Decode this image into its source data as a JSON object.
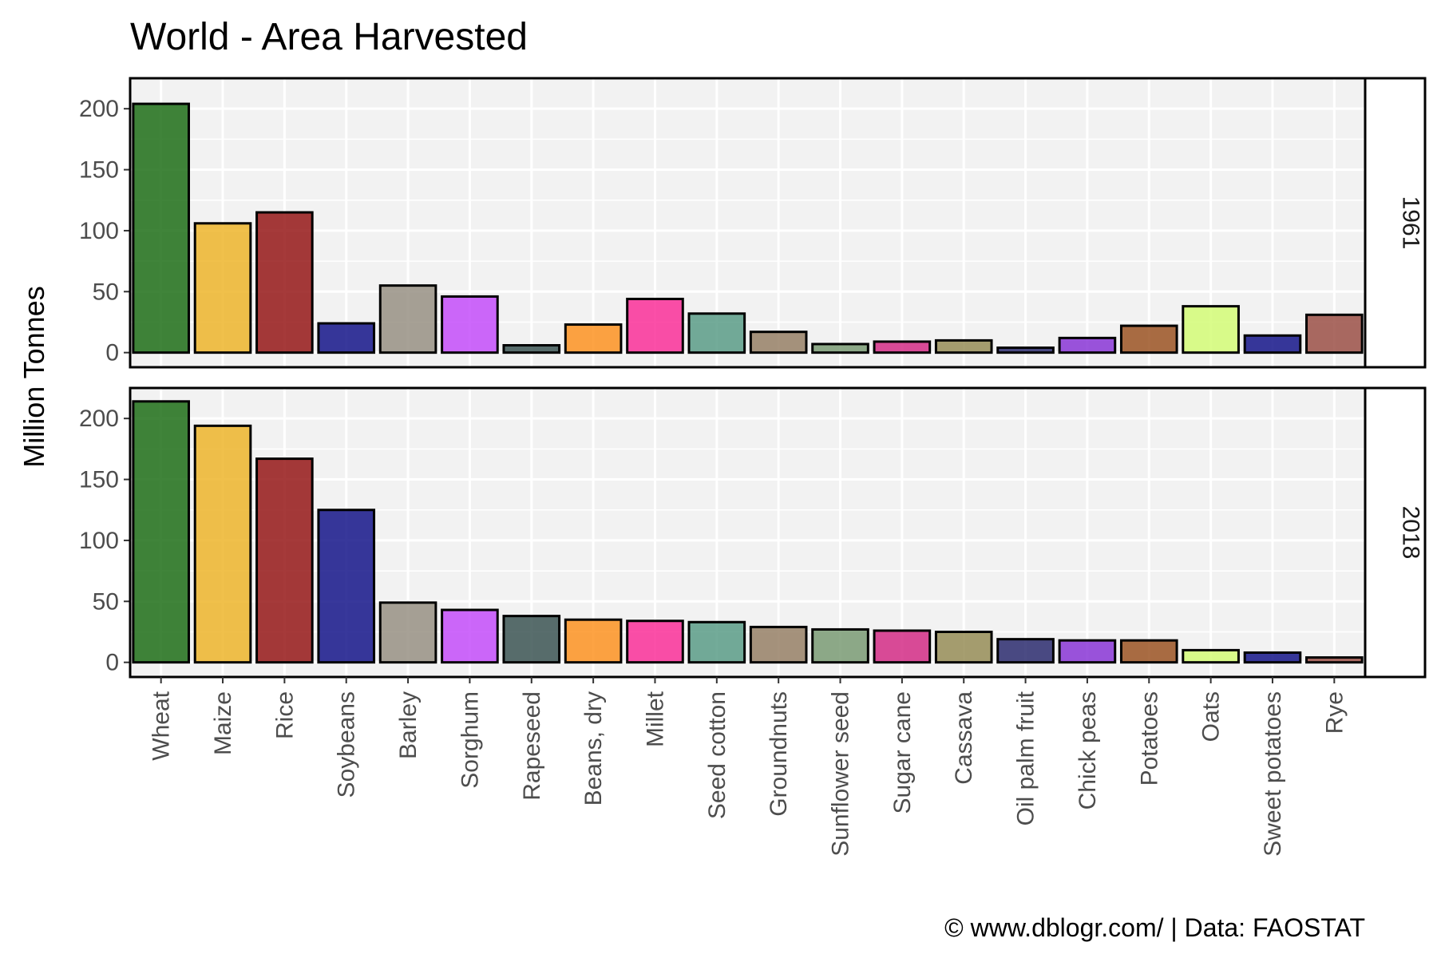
{
  "chart_data": {
    "type": "bar",
    "title": "World - Area Harvested",
    "ylabel": "Million Tonnes",
    "xlabel": "",
    "caption": "© www.dblogr.com/  |  Data: FAOSTAT",
    "ylim": [
      -12,
      225
    ],
    "yticks": [
      0,
      50,
      100,
      150,
      200
    ],
    "grid": true,
    "legend": "none",
    "categories": [
      "Wheat",
      "Maize",
      "Rice",
      "Soybeans",
      "Barley",
      "Sorghum",
      "Rapeseed",
      "Beans, dry",
      "Millet",
      "Seed cotton",
      "Groundnuts",
      "Sunflower seed",
      "Sugar cane",
      "Cassava",
      "Oil palm fruit",
      "Chick peas",
      "Potatoes",
      "Oats",
      "Sweet potatoes",
      "Rye"
    ],
    "colors": [
      "#1f6f17",
      "#edb52c",
      "#951717",
      "#15158a",
      "#989084",
      "#c44dfa",
      "#3c5554",
      "#fd9322",
      "#fa3099",
      "#5b9c87",
      "#968066",
      "#7a9b74",
      "#d42d86",
      "#968d57",
      "#2b2b6f",
      "#8a36d6",
      "#9b5423",
      "#d3fc77",
      "#15158a",
      "#9b5047"
    ],
    "panels": [
      {
        "label": "1961",
        "values": [
          204,
          106,
          115,
          24,
          55,
          46,
          6,
          23,
          44,
          32,
          17,
          7,
          9,
          10,
          4,
          12,
          22,
          38,
          14,
          31
        ]
      },
      {
        "label": "2018",
        "values": [
          214,
          194,
          167,
          125,
          49,
          43,
          38,
          35,
          34,
          33,
          29,
          27,
          26,
          25,
          19,
          18,
          18,
          10,
          8,
          4
        ]
      }
    ]
  }
}
